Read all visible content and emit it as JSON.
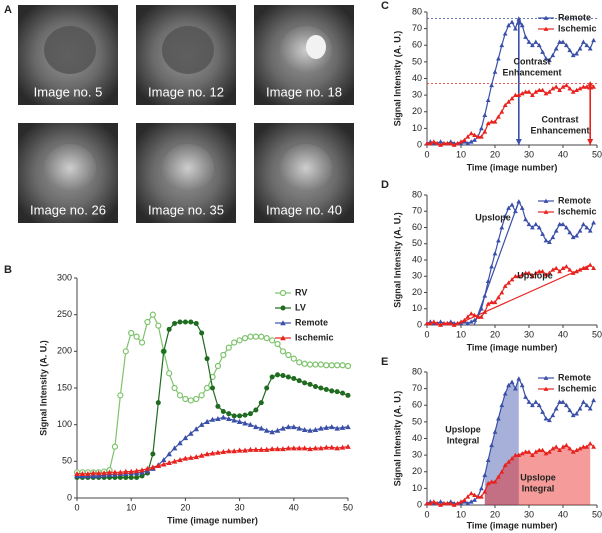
{
  "panel_a": {
    "label": "A",
    "images": [
      "Image no. 5",
      "Image no. 12",
      "Image no. 18",
      "Image no. 26",
      "Image no. 35",
      "Image no. 40"
    ]
  },
  "chart_data": [
    {
      "type": "line",
      "panel_label": "B",
      "x_label": "Time (image number)",
      "y_label": "Signal Intensity (A. U.)",
      "legend": "upper right",
      "xlim": [
        0,
        50
      ],
      "xticks": [
        0,
        10,
        20,
        30,
        40,
        50
      ],
      "ylim": [
        0,
        300
      ],
      "yticks": [
        0,
        50,
        100,
        150,
        200,
        250,
        300
      ],
      "x": [
        0,
        1,
        2,
        3,
        4,
        5,
        6,
        7,
        8,
        9,
        10,
        11,
        12,
        13,
        14,
        15,
        16,
        17,
        18,
        19,
        20,
        21,
        22,
        23,
        24,
        25,
        26,
        27,
        28,
        29,
        30,
        31,
        32,
        33,
        34,
        35,
        36,
        37,
        38,
        39,
        40,
        41,
        42,
        43,
        44,
        45,
        46,
        47,
        48,
        49,
        50
      ],
      "series": [
        {
          "name": "RV",
          "color": "#7dc36b",
          "marker": "open-circle",
          "values": [
            35,
            35,
            35,
            35,
            35,
            36,
            38,
            70,
            140,
            200,
            225,
            220,
            212,
            240,
            250,
            235,
            200,
            170,
            150,
            140,
            135,
            133,
            135,
            140,
            150,
            165,
            180,
            195,
            205,
            212,
            215,
            218,
            220,
            220,
            220,
            218,
            215,
            210,
            200,
            195,
            190,
            185,
            183,
            182,
            182,
            182,
            181,
            181,
            181,
            181,
            180
          ]
        },
        {
          "name": "LV",
          "color": "#1f6b1f",
          "marker": "circle",
          "values": [
            28,
            28,
            28,
            28,
            28,
            28,
            28,
            28,
            28,
            28,
            28,
            28,
            30,
            34,
            60,
            130,
            200,
            230,
            238,
            240,
            240,
            240,
            238,
            225,
            190,
            150,
            125,
            118,
            115,
            112,
            112,
            113,
            115,
            120,
            130,
            150,
            165,
            168,
            167,
            165,
            163,
            160,
            157,
            155,
            152,
            150,
            148,
            146,
            145,
            143,
            140
          ]
        },
        {
          "name": "Remote",
          "color": "#3a4fa8",
          "marker": "triangle",
          "values": [
            30,
            30,
            30,
            30,
            30,
            31,
            32,
            32,
            33,
            33,
            34,
            34,
            35,
            37,
            40,
            45,
            52,
            60,
            68,
            75,
            82,
            88,
            94,
            100,
            104,
            107,
            108,
            110,
            108,
            106,
            104,
            102,
            100,
            97,
            95,
            92,
            90,
            92,
            95,
            97,
            97,
            95,
            93,
            92,
            93,
            95,
            96,
            97,
            95,
            96,
            97
          ]
        },
        {
          "name": "Ischemic",
          "color": "#e8231f",
          "marker": "triangle",
          "values": [
            33,
            33,
            33,
            34,
            34,
            34,
            35,
            35,
            35,
            36,
            36,
            37,
            38,
            40,
            42,
            44,
            46,
            48,
            50,
            52,
            54,
            55,
            56,
            58,
            60,
            61,
            62,
            63,
            64,
            64,
            65,
            65,
            66,
            66,
            66,
            66,
            67,
            67,
            67,
            68,
            68,
            68,
            68,
            67,
            68,
            68,
            69,
            69,
            68,
            69,
            70
          ]
        }
      ]
    },
    {
      "type": "line",
      "panel_label": "C",
      "x_label": "Time (image number)",
      "y_label": "Signal Intensity (A. U.)",
      "legend": "upper right",
      "xlim": [
        0,
        50
      ],
      "xticks": [
        0,
        10,
        20,
        30,
        40,
        50
      ],
      "ylim": [
        0,
        80
      ],
      "yticks": [
        0,
        10,
        20,
        30,
        40,
        50,
        60,
        70,
        80
      ],
      "x": [
        0,
        1,
        2,
        3,
        4,
        5,
        6,
        7,
        8,
        9,
        10,
        11,
        12,
        13,
        14,
        15,
        16,
        17,
        18,
        19,
        20,
        21,
        22,
        23,
        24,
        25,
        26,
        27,
        28,
        29,
        30,
        31,
        32,
        33,
        34,
        35,
        36,
        37,
        38,
        39,
        40,
        41,
        42,
        43,
        44,
        45,
        46,
        47,
        48,
        49
      ],
      "series": [
        {
          "name": "Remote",
          "color": "#3a4fa8",
          "marker": "triangle",
          "values": [
            1,
            2,
            1,
            1,
            2,
            1,
            1,
            2,
            1,
            1,
            1,
            2,
            1,
            2,
            3,
            5,
            10,
            18,
            27,
            36,
            44,
            52,
            60,
            67,
            72,
            74,
            70,
            76,
            72,
            65,
            62,
            60,
            62,
            60,
            56,
            52,
            51,
            54,
            58,
            62,
            62,
            60,
            57,
            54,
            55,
            58,
            62,
            60,
            58,
            63
          ]
        },
        {
          "name": "Ischemic",
          "color": "#e8231f",
          "marker": "triangle",
          "values": [
            1,
            1,
            2,
            1,
            0,
            1,
            1,
            1,
            0,
            1,
            2,
            3,
            5,
            7,
            6,
            5,
            5,
            8,
            13,
            14,
            14,
            17,
            20,
            24,
            26,
            28,
            30,
            30,
            31,
            32,
            32,
            30,
            32,
            33,
            33,
            31,
            32,
            34,
            35,
            33,
            35,
            36,
            34,
            32,
            33,
            34,
            35,
            35,
            37,
            35
          ]
        }
      ],
      "annotations": [
        {
          "text": [
            "Contrast",
            "Enhancement"
          ],
          "color": "#3a4fa8"
        },
        {
          "text": [
            "Contrast",
            "Enhancement"
          ],
          "color": "#e8231f"
        }
      ]
    },
    {
      "type": "line",
      "panel_label": "D",
      "x_label": "Time (image number)",
      "y_label": "Signal Intensity (A. U.)",
      "legend": "upper right",
      "xlim": [
        0,
        50
      ],
      "xticks": [
        0,
        10,
        20,
        30,
        40,
        50
      ],
      "ylim": [
        0,
        80
      ],
      "yticks": [
        0,
        10,
        20,
        30,
        40,
        50,
        60,
        70,
        80
      ],
      "x": [
        0,
        1,
        2,
        3,
        4,
        5,
        6,
        7,
        8,
        9,
        10,
        11,
        12,
        13,
        14,
        15,
        16,
        17,
        18,
        19,
        20,
        21,
        22,
        23,
        24,
        25,
        26,
        27,
        28,
        29,
        30,
        31,
        32,
        33,
        34,
        35,
        36,
        37,
        38,
        39,
        40,
        41,
        42,
        43,
        44,
        45,
        46,
        47,
        48,
        49
      ],
      "series": [
        {
          "name": "Remote",
          "color": "#3a4fa8",
          "marker": "triangle",
          "values": [
            1,
            2,
            1,
            1,
            2,
            1,
            1,
            2,
            1,
            1,
            1,
            2,
            1,
            2,
            3,
            5,
            10,
            18,
            27,
            36,
            44,
            52,
            60,
            67,
            72,
            74,
            70,
            76,
            72,
            65,
            62,
            60,
            62,
            60,
            56,
            52,
            51,
            54,
            58,
            62,
            62,
            60,
            57,
            54,
            55,
            58,
            62,
            60,
            58,
            63
          ]
        },
        {
          "name": "Ischemic",
          "color": "#e8231f",
          "marker": "triangle",
          "values": [
            1,
            1,
            2,
            1,
            0,
            1,
            1,
            1,
            0,
            1,
            2,
            3,
            5,
            7,
            6,
            5,
            5,
            8,
            13,
            14,
            14,
            17,
            20,
            24,
            26,
            28,
            30,
            30,
            31,
            32,
            32,
            30,
            32,
            33,
            33,
            31,
            32,
            34,
            35,
            33,
            35,
            36,
            34,
            32,
            33,
            34,
            35,
            35,
            37,
            35
          ]
        }
      ],
      "annotations": [
        {
          "text": [
            "Upslope"
          ],
          "color": "#3a4fa8"
        },
        {
          "text": [
            "Upslope"
          ],
          "color": "#e8231f"
        }
      ]
    },
    {
      "type": "line",
      "panel_label": "E",
      "x_label": "Time (image number)",
      "y_label": "Signal Intensity (A. U.)",
      "legend": "upper right",
      "xlim": [
        0,
        50
      ],
      "xticks": [
        0,
        10,
        20,
        30,
        40,
        50
      ],
      "ylim": [
        0,
        80
      ],
      "yticks": [
        0,
        10,
        20,
        30,
        40,
        50,
        60,
        70,
        80
      ],
      "x": [
        0,
        1,
        2,
        3,
        4,
        5,
        6,
        7,
        8,
        9,
        10,
        11,
        12,
        13,
        14,
        15,
        16,
        17,
        18,
        19,
        20,
        21,
        22,
        23,
        24,
        25,
        26,
        27,
        28,
        29,
        30,
        31,
        32,
        33,
        34,
        35,
        36,
        37,
        38,
        39,
        40,
        41,
        42,
        43,
        44,
        45,
        46,
        47,
        48,
        49
      ],
      "series": [
        {
          "name": "Remote",
          "color": "#3a4fa8",
          "marker": "triangle",
          "values": [
            1,
            2,
            1,
            1,
            2,
            1,
            1,
            2,
            1,
            1,
            1,
            2,
            1,
            2,
            3,
            5,
            10,
            18,
            27,
            36,
            44,
            52,
            60,
            67,
            72,
            74,
            70,
            76,
            72,
            65,
            62,
            60,
            62,
            60,
            56,
            52,
            51,
            54,
            58,
            62,
            62,
            60,
            57,
            54,
            55,
            58,
            62,
            60,
            58,
            63
          ]
        },
        {
          "name": "Ischemic",
          "color": "#e8231f",
          "marker": "triangle",
          "values": [
            1,
            1,
            2,
            1,
            0,
            1,
            1,
            1,
            0,
            1,
            2,
            3,
            5,
            7,
            6,
            5,
            5,
            8,
            13,
            14,
            14,
            17,
            20,
            24,
            26,
            28,
            30,
            30,
            31,
            32,
            32,
            30,
            32,
            33,
            33,
            31,
            32,
            34,
            35,
            33,
            35,
            36,
            34,
            32,
            33,
            34,
            35,
            35,
            37,
            35
          ]
        }
      ],
      "annotations": [
        {
          "text": [
            "Upslope",
            "Integral"
          ],
          "color": "#3a4fa8"
        },
        {
          "text": [
            "Upslope",
            "Integral"
          ],
          "color": "#e8231f"
        }
      ]
    }
  ]
}
